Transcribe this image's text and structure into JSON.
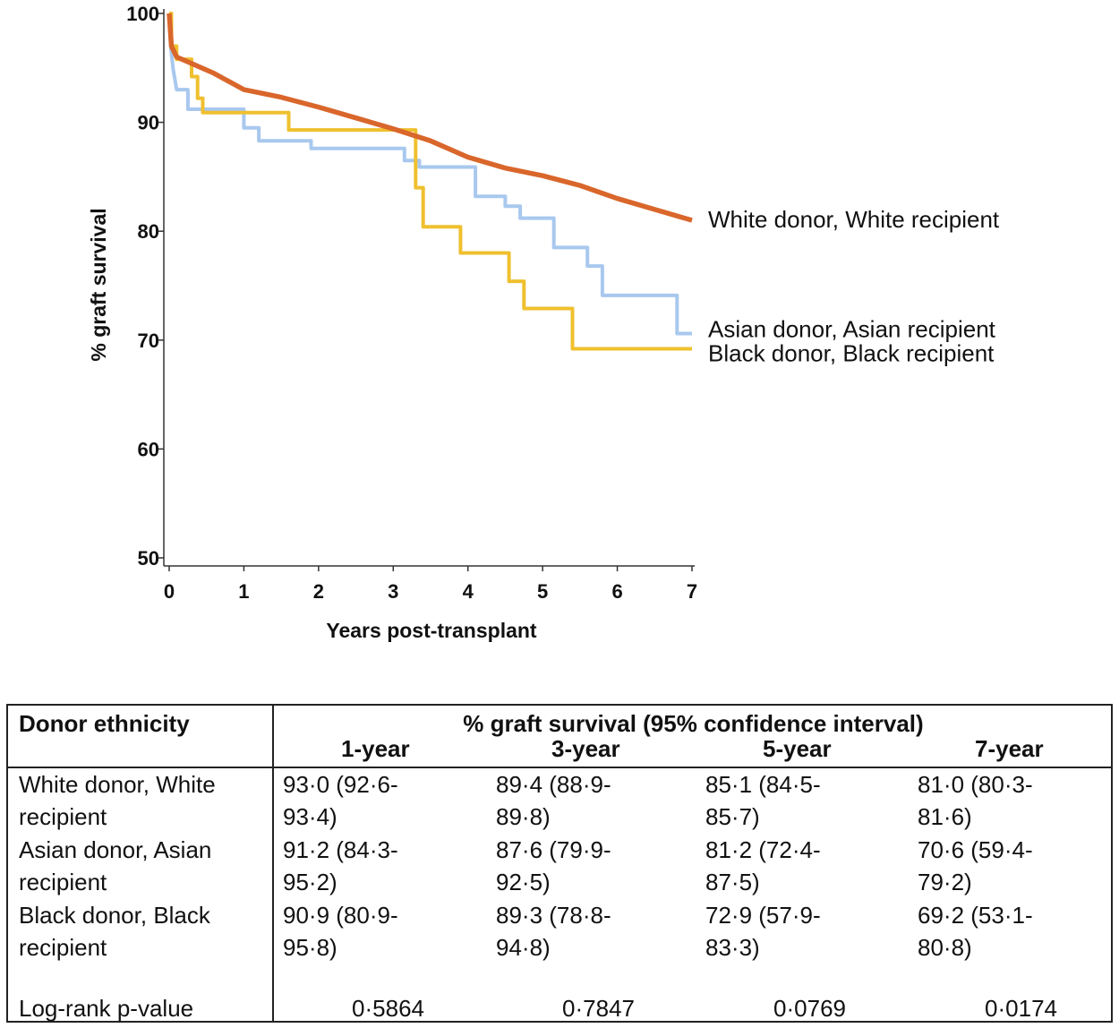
{
  "chart_data": {
    "type": "line",
    "step": true,
    "xlabel": "Years post-transplant",
    "ylabel": "% graft survival",
    "xlim": [
      0,
      7
    ],
    "ylim": [
      50,
      100
    ],
    "xticks": [
      0,
      1,
      2,
      3,
      4,
      5,
      6,
      7
    ],
    "yticks": [
      50,
      60,
      70,
      80,
      90,
      100
    ],
    "grid": false,
    "legend": "labels at line ends (right)",
    "series": [
      {
        "name": "White donor, White recipient",
        "color": "#d9662b",
        "points": [
          [
            0,
            100
          ],
          [
            0.03,
            97
          ],
          [
            0.1,
            96
          ],
          [
            0.3,
            95.4
          ],
          [
            0.6,
            94.5
          ],
          [
            1,
            93
          ],
          [
            1.5,
            92.3
          ],
          [
            2,
            91.4
          ],
          [
            2.5,
            90.4
          ],
          [
            3,
            89.4
          ],
          [
            3.5,
            88.3
          ],
          [
            4,
            86.8
          ],
          [
            4.5,
            85.8
          ],
          [
            5,
            85.1
          ],
          [
            5.5,
            84.2
          ],
          [
            6,
            83
          ],
          [
            6.5,
            82
          ],
          [
            7,
            81
          ]
        ]
      },
      {
        "name": "Asian donor, Asian recipient",
        "color": "#a8c8ee",
        "points": [
          [
            0,
            100
          ],
          [
            0.02,
            97
          ],
          [
            0.05,
            95
          ],
          [
            0.1,
            93
          ],
          [
            0.25,
            93
          ],
          [
            0.25,
            91.2
          ],
          [
            1,
            91.2
          ],
          [
            1,
            89.5
          ],
          [
            1.2,
            89.5
          ],
          [
            1.2,
            88.3
          ],
          [
            1.9,
            88.3
          ],
          [
            1.9,
            87.6
          ],
          [
            3.15,
            87.6
          ],
          [
            3.15,
            86.5
          ],
          [
            3.35,
            86.5
          ],
          [
            3.35,
            85.9
          ],
          [
            4.1,
            85.9
          ],
          [
            4.1,
            83.2
          ],
          [
            4.5,
            83.2
          ],
          [
            4.5,
            82.3
          ],
          [
            4.7,
            82.3
          ],
          [
            4.7,
            81.2
          ],
          [
            5.15,
            81.2
          ],
          [
            5.15,
            78.5
          ],
          [
            5.6,
            78.5
          ],
          [
            5.6,
            76.8
          ],
          [
            5.8,
            76.8
          ],
          [
            5.8,
            74.1
          ],
          [
            6.8,
            74.1
          ],
          [
            6.8,
            70.6
          ],
          [
            7,
            70.6
          ]
        ]
      },
      {
        "name": "Black donor, Black recipient",
        "color": "#efc02f",
        "points": [
          [
            0,
            100
          ],
          [
            0.03,
            100
          ],
          [
            0.03,
            97
          ],
          [
            0.1,
            97
          ],
          [
            0.1,
            95.8
          ],
          [
            0.3,
            95.8
          ],
          [
            0.3,
            94.2
          ],
          [
            0.38,
            94.2
          ],
          [
            0.38,
            92.2
          ],
          [
            0.45,
            92.2
          ],
          [
            0.45,
            90.9
          ],
          [
            1.6,
            90.9
          ],
          [
            1.6,
            89.3
          ],
          [
            3.3,
            89.3
          ],
          [
            3.3,
            84
          ],
          [
            3.4,
            84
          ],
          [
            3.4,
            80.4
          ],
          [
            3.9,
            80.4
          ],
          [
            3.9,
            78
          ],
          [
            4.55,
            78
          ],
          [
            4.55,
            75.4
          ],
          [
            4.75,
            75.4
          ],
          [
            4.75,
            72.9
          ],
          [
            5.4,
            72.9
          ],
          [
            5.4,
            69.2
          ],
          [
            7,
            69.2
          ]
        ]
      }
    ]
  },
  "table": {
    "header_col": "Donor ethnicity",
    "header_group": "% graft survival (95% confidence interval)",
    "columns": [
      "1-year",
      "3-year",
      "5-year",
      "7-year"
    ],
    "rows": [
      {
        "label": "White donor, White\nrecipient",
        "cells": [
          "93·0 (92·6-\n93·4)",
          "89·4 (88·9-\n89·8)",
          "85·1 (84·5-\n85·7)",
          "81·0 (80·3-\n81·6)"
        ]
      },
      {
        "label": "Asian donor, Asian\nrecipient",
        "cells": [
          "91·2 (84·3-\n95·2)",
          "87·6 (79·9-\n92·5)",
          "81·2 (72·4-\n87·5)",
          "70·6 (59·4-\n79·2)"
        ]
      },
      {
        "label": "Black donor, Black\nrecipient",
        "cells": [
          "90·9 (80·9-\n95·8)",
          "89·3 (78·8-\n94·8)",
          "72·9 (57·9-\n83·3)",
          "69·2 (53·1-\n80·8)"
        ]
      }
    ],
    "pvalue_label": "Log-rank p-value",
    "pvalues": [
      "0·5864",
      "0·7847",
      "0·0769",
      "0·0174"
    ]
  }
}
